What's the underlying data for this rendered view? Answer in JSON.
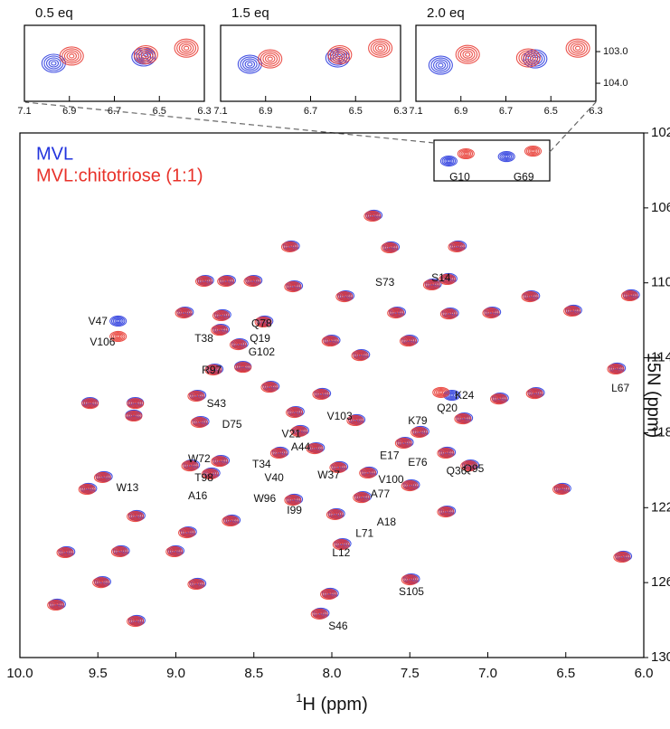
{
  "chart_data": [
    {
      "type": "scatter",
      "x_label_isotope": "1",
      "x_label": "H (ppm)",
      "y_label": "15N (ppm)",
      "xlim": [
        10,
        6
      ],
      "ylim": [
        102,
        130
      ],
      "xticks": [
        {
          "value": 10,
          "label": "10.0"
        },
        9.5,
        {
          "value": 9,
          "label": "9.0"
        },
        8.5,
        {
          "value": 8,
          "label": "8.0"
        },
        7.5,
        {
          "value": 7,
          "label": "7.0"
        },
        6.5,
        {
          "value": 6,
          "label": "6.0"
        }
      ],
      "yticks": [
        102,
        106,
        110,
        114,
        118,
        122,
        126,
        130
      ],
      "legend": "upper left",
      "series": [
        {
          "name": "MVL",
          "color": "#2233dd",
          "x": [
            7.73,
            8.26,
            7.62,
            7.19,
            7.35,
            7.25,
            8.81,
            8.67,
            8.5,
            8.24,
            8.94,
            8.7,
            8.43,
            7.91,
            7.58,
            7.24,
            6.97,
            6.72,
            6.45,
            6.08,
            9.37,
            8.71,
            8.59,
            8.57,
            8,
            7.5,
            7.81,
            8.75,
            6.17,
            6.69,
            6.92,
            7.23,
            9.26,
            9.55,
            8.86,
            8.39,
            8.06,
            9.27,
            8.84,
            8.23,
            7.84,
            7.15,
            7.43,
            8.2,
            8.33,
            8.1,
            7.95,
            7.76,
            7.26,
            7.53,
            7.11,
            8.71,
            8.9,
            8.77,
            9.46,
            9.56,
            8.24,
            7.8,
            7.49,
            6.52,
            7.26,
            7.97,
            9.25,
            8.64,
            8.92,
            9.7,
            9.35,
            9,
            7.93,
            6.13,
            7.49,
            9.47,
            8.86,
            8.01,
            9.76,
            9.25,
            8.07,
            7.25,
            6.88
          ],
          "values": [
            106.39,
            108.03,
            108.08,
            108.03,
            110.06,
            109.77,
            109.87,
            109.87,
            109.87,
            110.16,
            111.56,
            111.7,
            112.04,
            110.69,
            111.56,
            111.61,
            111.56,
            110.69,
            111.46,
            110.64,
            112.04,
            112.48,
            113.25,
            114.46,
            113.06,
            113.06,
            113.83,
            114.6,
            114.55,
            115.86,
            116.15,
            116,
            116.39,
            116.39,
            116,
            115.52,
            115.9,
            117.06,
            117.4,
            116.87,
            117.3,
            117.21,
            117.93,
            117.88,
            119.04,
            118.8,
            119.81,
            120.1,
            119.04,
            118.51,
            119.72,
            119.48,
            119.72,
            120.15,
            120.34,
            120.97,
            121.55,
            121.41,
            120.78,
            120.97,
            122.18,
            122.32,
            122.42,
            122.66,
            123.29,
            124.35,
            124.3,
            124.3,
            123.92,
            124.59,
            125.8,
            125.95,
            126.04,
            126.57,
            127.15,
            128.02,
            127.63,
            103.5,
            103.26
          ]
        },
        {
          "name": "MVL:chitotriose (1:1)",
          "color": "#e8322a",
          "x": [
            7.74,
            8.27,
            7.63,
            7.2,
            7.36,
            7.26,
            8.82,
            8.68,
            8.51,
            8.25,
            8.95,
            8.71,
            8.44,
            7.92,
            7.59,
            7.25,
            6.98,
            6.73,
            6.46,
            6.09,
            9.37,
            8.72,
            8.6,
            8.57,
            8.01,
            7.51,
            7.82,
            8.76,
            6.18,
            6.7,
            6.93,
            7.3,
            9.26,
            9.55,
            8.87,
            8.4,
            8.07,
            9.27,
            8.85,
            8.24,
            7.85,
            7.16,
            7.44,
            8.21,
            8.34,
            8.11,
            7.96,
            7.77,
            7.27,
            7.54,
            7.12,
            8.72,
            8.91,
            8.78,
            9.47,
            9.57,
            8.25,
            7.81,
            7.5,
            6.53,
            7.27,
            7.98,
            9.26,
            8.65,
            8.93,
            9.71,
            9.36,
            9.01,
            7.94,
            6.14,
            7.5,
            9.48,
            8.87,
            8.02,
            9.77,
            9.26,
            8.08,
            7.14,
            6.71
          ],
          "values": [
            106.44,
            108.08,
            108.13,
            108.08,
            110.11,
            109.82,
            109.92,
            109.92,
            109.92,
            110.21,
            111.61,
            111.75,
            112.09,
            110.74,
            111.61,
            111.66,
            111.61,
            110.74,
            111.51,
            110.69,
            112.86,
            112.53,
            113.3,
            114.51,
            113.11,
            113.11,
            113.88,
            114.65,
            114.6,
            115.91,
            116.2,
            115.85,
            116.44,
            116.44,
            116.05,
            115.57,
            115.95,
            117.11,
            117.45,
            116.92,
            117.35,
            117.26,
            117.98,
            117.93,
            119.09,
            118.85,
            119.86,
            120.15,
            119.09,
            118.56,
            119.77,
            119.53,
            119.77,
            120.2,
            120.39,
            121.02,
            121.6,
            121.46,
            120.83,
            121.02,
            122.23,
            122.37,
            122.47,
            122.71,
            123.34,
            124.4,
            124.35,
            124.35,
            123.97,
            124.64,
            125.85,
            126,
            126.09,
            126.62,
            127.2,
            128.07,
            127.68,
            103.11,
            102.97
          ]
        }
      ],
      "annotations": [
        {
          "text": "G10",
          "x": 7.18,
          "y": 104.37
        },
        {
          "text": "G69",
          "x": 6.77,
          "y": 104.37
        },
        {
          "text": "S73",
          "x": 7.66,
          "y": 110.01
        },
        {
          "text": "S14",
          "x": 7.3,
          "y": 109.77
        },
        {
          "text": "Q78",
          "x": 8.45,
          "y": 112.19
        },
        {
          "text": "Q19",
          "x": 8.46,
          "y": 113.01
        },
        {
          "text": "T38",
          "x": 8.82,
          "y": 113.01
        },
        {
          "text": "G102",
          "x": 8.45,
          "y": 113.73
        },
        {
          "text": "V47",
          "x": 9.5,
          "y": 112.09
        },
        {
          "text": "V106",
          "x": 9.47,
          "y": 113.2
        },
        {
          "text": "R97",
          "x": 8.77,
          "y": 114.7
        },
        {
          "text": "S43",
          "x": 8.74,
          "y": 116.48
        },
        {
          "text": "L67",
          "x": 6.15,
          "y": 115.66
        },
        {
          "text": "K24",
          "x": 7.15,
          "y": 116.05
        },
        {
          "text": "Q20",
          "x": 7.26,
          "y": 116.72
        },
        {
          "text": "D75",
          "x": 8.64,
          "y": 117.59
        },
        {
          "text": "V103",
          "x": 7.95,
          "y": 117.16
        },
        {
          "text": "K79",
          "x": 7.45,
          "y": 117.4
        },
        {
          "text": "V21",
          "x": 8.26,
          "y": 118.08
        },
        {
          "text": "E17",
          "x": 7.63,
          "y": 119.24
        },
        {
          "text": "E76",
          "x": 7.45,
          "y": 119.62
        },
        {
          "text": "A44",
          "x": 8.2,
          "y": 118.8
        },
        {
          "text": "T34",
          "x": 8.45,
          "y": 119.72
        },
        {
          "text": "Q36",
          "x": 7.2,
          "y": 120.06
        },
        {
          "text": "Q95",
          "x": 7.09,
          "y": 119.96
        },
        {
          "text": "W72",
          "x": 8.85,
          "y": 119.43
        },
        {
          "text": "T98",
          "x": 8.82,
          "y": 120.44
        },
        {
          "text": "W13",
          "x": 9.31,
          "y": 120.97
        },
        {
          "text": "V40",
          "x": 8.37,
          "y": 120.44
        },
        {
          "text": "W37",
          "x": 8.02,
          "y": 120.3
        },
        {
          "text": "V100",
          "x": 7.62,
          "y": 120.54
        },
        {
          "text": "A16",
          "x": 8.86,
          "y": 121.41
        },
        {
          "text": "W96",
          "x": 8.43,
          "y": 121.55
        },
        {
          "text": "A77",
          "x": 7.69,
          "y": 121.31
        },
        {
          "text": "I99",
          "x": 8.24,
          "y": 122.18
        },
        {
          "text": "A18",
          "x": 7.65,
          "y": 122.81
        },
        {
          "text": "L71",
          "x": 7.79,
          "y": 123.39
        },
        {
          "text": "L12",
          "x": 7.94,
          "y": 124.45
        },
        {
          "text": "S105",
          "x": 7.49,
          "y": 126.52
        },
        {
          "text": "S46",
          "x": 7.96,
          "y": 128.36
        }
      ]
    },
    {
      "type": "scatter",
      "title": "0.5 eq",
      "xlim": [
        7.1,
        6.3
      ],
      "ylim": [
        102.17,
        104.57
      ],
      "xticks": [
        7.1,
        6.9,
        6.7,
        6.5,
        6.3
      ],
      "series": [
        {
          "color": "#2233dd",
          "x": [
            6.97,
            6.57
          ],
          "values": [
            103.37,
            103.17
          ]
        },
        {
          "color": "#e8322a",
          "x": [
            6.89,
            6.56,
            6.38
          ],
          "values": [
            103.14,
            103.1,
            102.89
          ]
        }
      ]
    },
    {
      "type": "scatter",
      "title": "1.5 eq",
      "xlim": [
        7.1,
        6.3
      ],
      "ylim": [
        102.17,
        104.57
      ],
      "xticks": [
        7.1,
        6.9,
        6.7,
        6.5,
        6.3
      ],
      "series": [
        {
          "color": "#2233dd",
          "x": [
            6.97,
            6.58
          ],
          "values": [
            103.4,
            103.2
          ]
        },
        {
          "color": "#e8322a",
          "x": [
            6.88,
            6.57,
            6.39
          ],
          "values": [
            103.23,
            103.1,
            102.89
          ]
        }
      ]
    },
    {
      "type": "scatter",
      "title": "2.0 eq",
      "xlim": [
        7.1,
        6.3
      ],
      "ylim": [
        102.17,
        104.57
      ],
      "xticks": [
        7.1,
        6.9,
        6.7,
        6.5,
        6.3
      ],
      "yticks": [
        {
          "value": 103,
          "label": "103.0"
        },
        {
          "value": 104,
          "label": "104.0"
        }
      ],
      "series": [
        {
          "color": "#2233dd",
          "x": [
            6.99,
            6.57
          ],
          "values": [
            103.43,
            103.23
          ]
        },
        {
          "color": "#e8322a",
          "x": [
            6.87,
            6.6,
            6.38
          ],
          "values": [
            103.09,
            103.2,
            102.89
          ]
        }
      ]
    }
  ]
}
